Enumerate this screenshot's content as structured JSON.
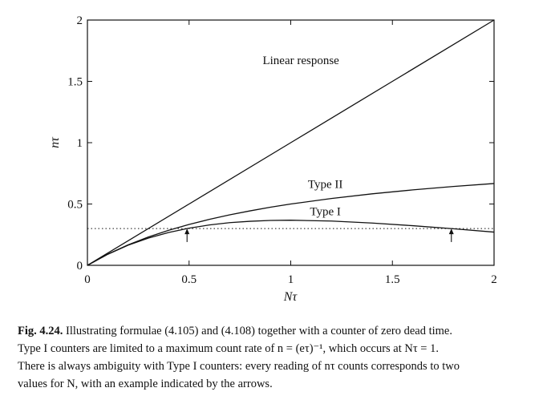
{
  "chart_data": {
    "type": "line",
    "xlabel": "Nτ",
    "ylabel": "nτ",
    "xlim": [
      0,
      2
    ],
    "ylim": [
      0,
      2
    ],
    "x_ticks": [
      "0",
      "0.5",
      "1",
      "1.5",
      "2"
    ],
    "y_ticks": [
      "0",
      "0.5",
      "1",
      "1.5",
      "2"
    ],
    "grid": false,
    "series": [
      {
        "name": "Linear response",
        "style": "solid",
        "x": [
          0,
          0.5,
          1,
          1.5,
          2
        ],
        "y": [
          0,
          0.5,
          1,
          1.5,
          2
        ]
      },
      {
        "name": "Type II",
        "style": "solid",
        "x": [
          0,
          0.1,
          0.2,
          0.3,
          0.4,
          0.5,
          0.6,
          0.7,
          0.8,
          0.9,
          1.0,
          1.2,
          1.4,
          1.6,
          1.8,
          2.0
        ],
        "y": [
          0,
          0.091,
          0.167,
          0.231,
          0.286,
          0.333,
          0.375,
          0.412,
          0.444,
          0.474,
          0.5,
          0.545,
          0.583,
          0.615,
          0.643,
          0.667
        ]
      },
      {
        "name": "Type I",
        "style": "solid",
        "x": [
          0,
          0.1,
          0.2,
          0.3,
          0.4,
          0.5,
          0.6,
          0.7,
          0.8,
          0.9,
          1.0,
          1.2,
          1.4,
          1.6,
          1.8,
          2.0
        ],
        "y": [
          0,
          0.09,
          0.164,
          0.222,
          0.268,
          0.303,
          0.329,
          0.348,
          0.359,
          0.366,
          0.368,
          0.361,
          0.345,
          0.323,
          0.298,
          0.271
        ]
      },
      {
        "name": "",
        "style": "dotted",
        "x": [
          0,
          2
        ],
        "y": [
          0.3,
          0.3
        ]
      }
    ],
    "annotations": [
      {
        "text": "Linear response",
        "x": 1.05,
        "y": 1.64
      },
      {
        "text": "Type II",
        "x": 1.17,
        "y": 0.63
      },
      {
        "text": "Type I",
        "x": 1.17,
        "y": 0.41
      }
    ],
    "arrows": [
      {
        "x": 0.49,
        "y_from": 0.19,
        "y_to": 0.3
      },
      {
        "x": 1.79,
        "y_from": 0.19,
        "y_to": 0.3
      }
    ]
  },
  "caption": {
    "label": "Fig. 4.24.",
    "lines": [
      "Illustrating formulae (4.105) and (4.108) together with a counter of zero dead time.",
      "Type I counters are limited to a maximum count rate of n = (eτ)⁻¹, which occurs at Nτ = 1.",
      "There is always ambiguity with Type I counters: every reading of nτ counts corresponds to two",
      "values for N, with an example indicated by the arrows."
    ]
  }
}
